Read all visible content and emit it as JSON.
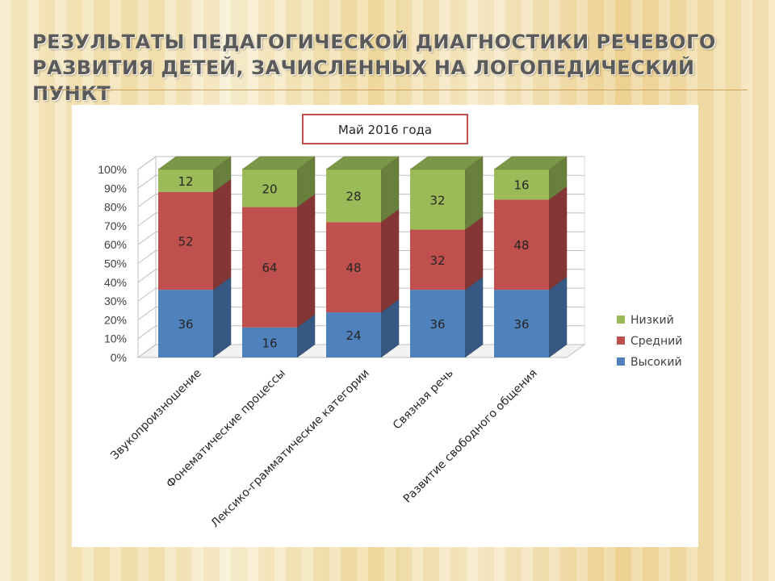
{
  "slide": {
    "title": "Результаты педагогической диагностики речевого развития детей, зачисленных на логопедический пункт"
  },
  "chart_data": {
    "type": "bar",
    "stacked": true,
    "percent": true,
    "style": "3d-column",
    "title": "Май 2016 года",
    "categories": [
      "Звукопроизношение",
      "Фонематические процессы",
      "Лексико-грамматические категории",
      "Связная речь",
      "Развитие свободного общения"
    ],
    "series": [
      {
        "name": "Высокий",
        "values": [
          36,
          16,
          24,
          36,
          36
        ],
        "color": "#4f81bd"
      },
      {
        "name": "Средний",
        "values": [
          52,
          64,
          48,
          32,
          48
        ],
        "color": "#c0504d"
      },
      {
        "name": "Низкий",
        "values": [
          12,
          20,
          28,
          32,
          16
        ],
        "color": "#9bbb59"
      }
    ],
    "y_ticks": [
      "0%",
      "10%",
      "20%",
      "30%",
      "40%",
      "50%",
      "60%",
      "70%",
      "80%",
      "90%",
      "100%"
    ],
    "ylim": [
      0,
      100
    ],
    "grid": true,
    "legend_position": "right"
  }
}
